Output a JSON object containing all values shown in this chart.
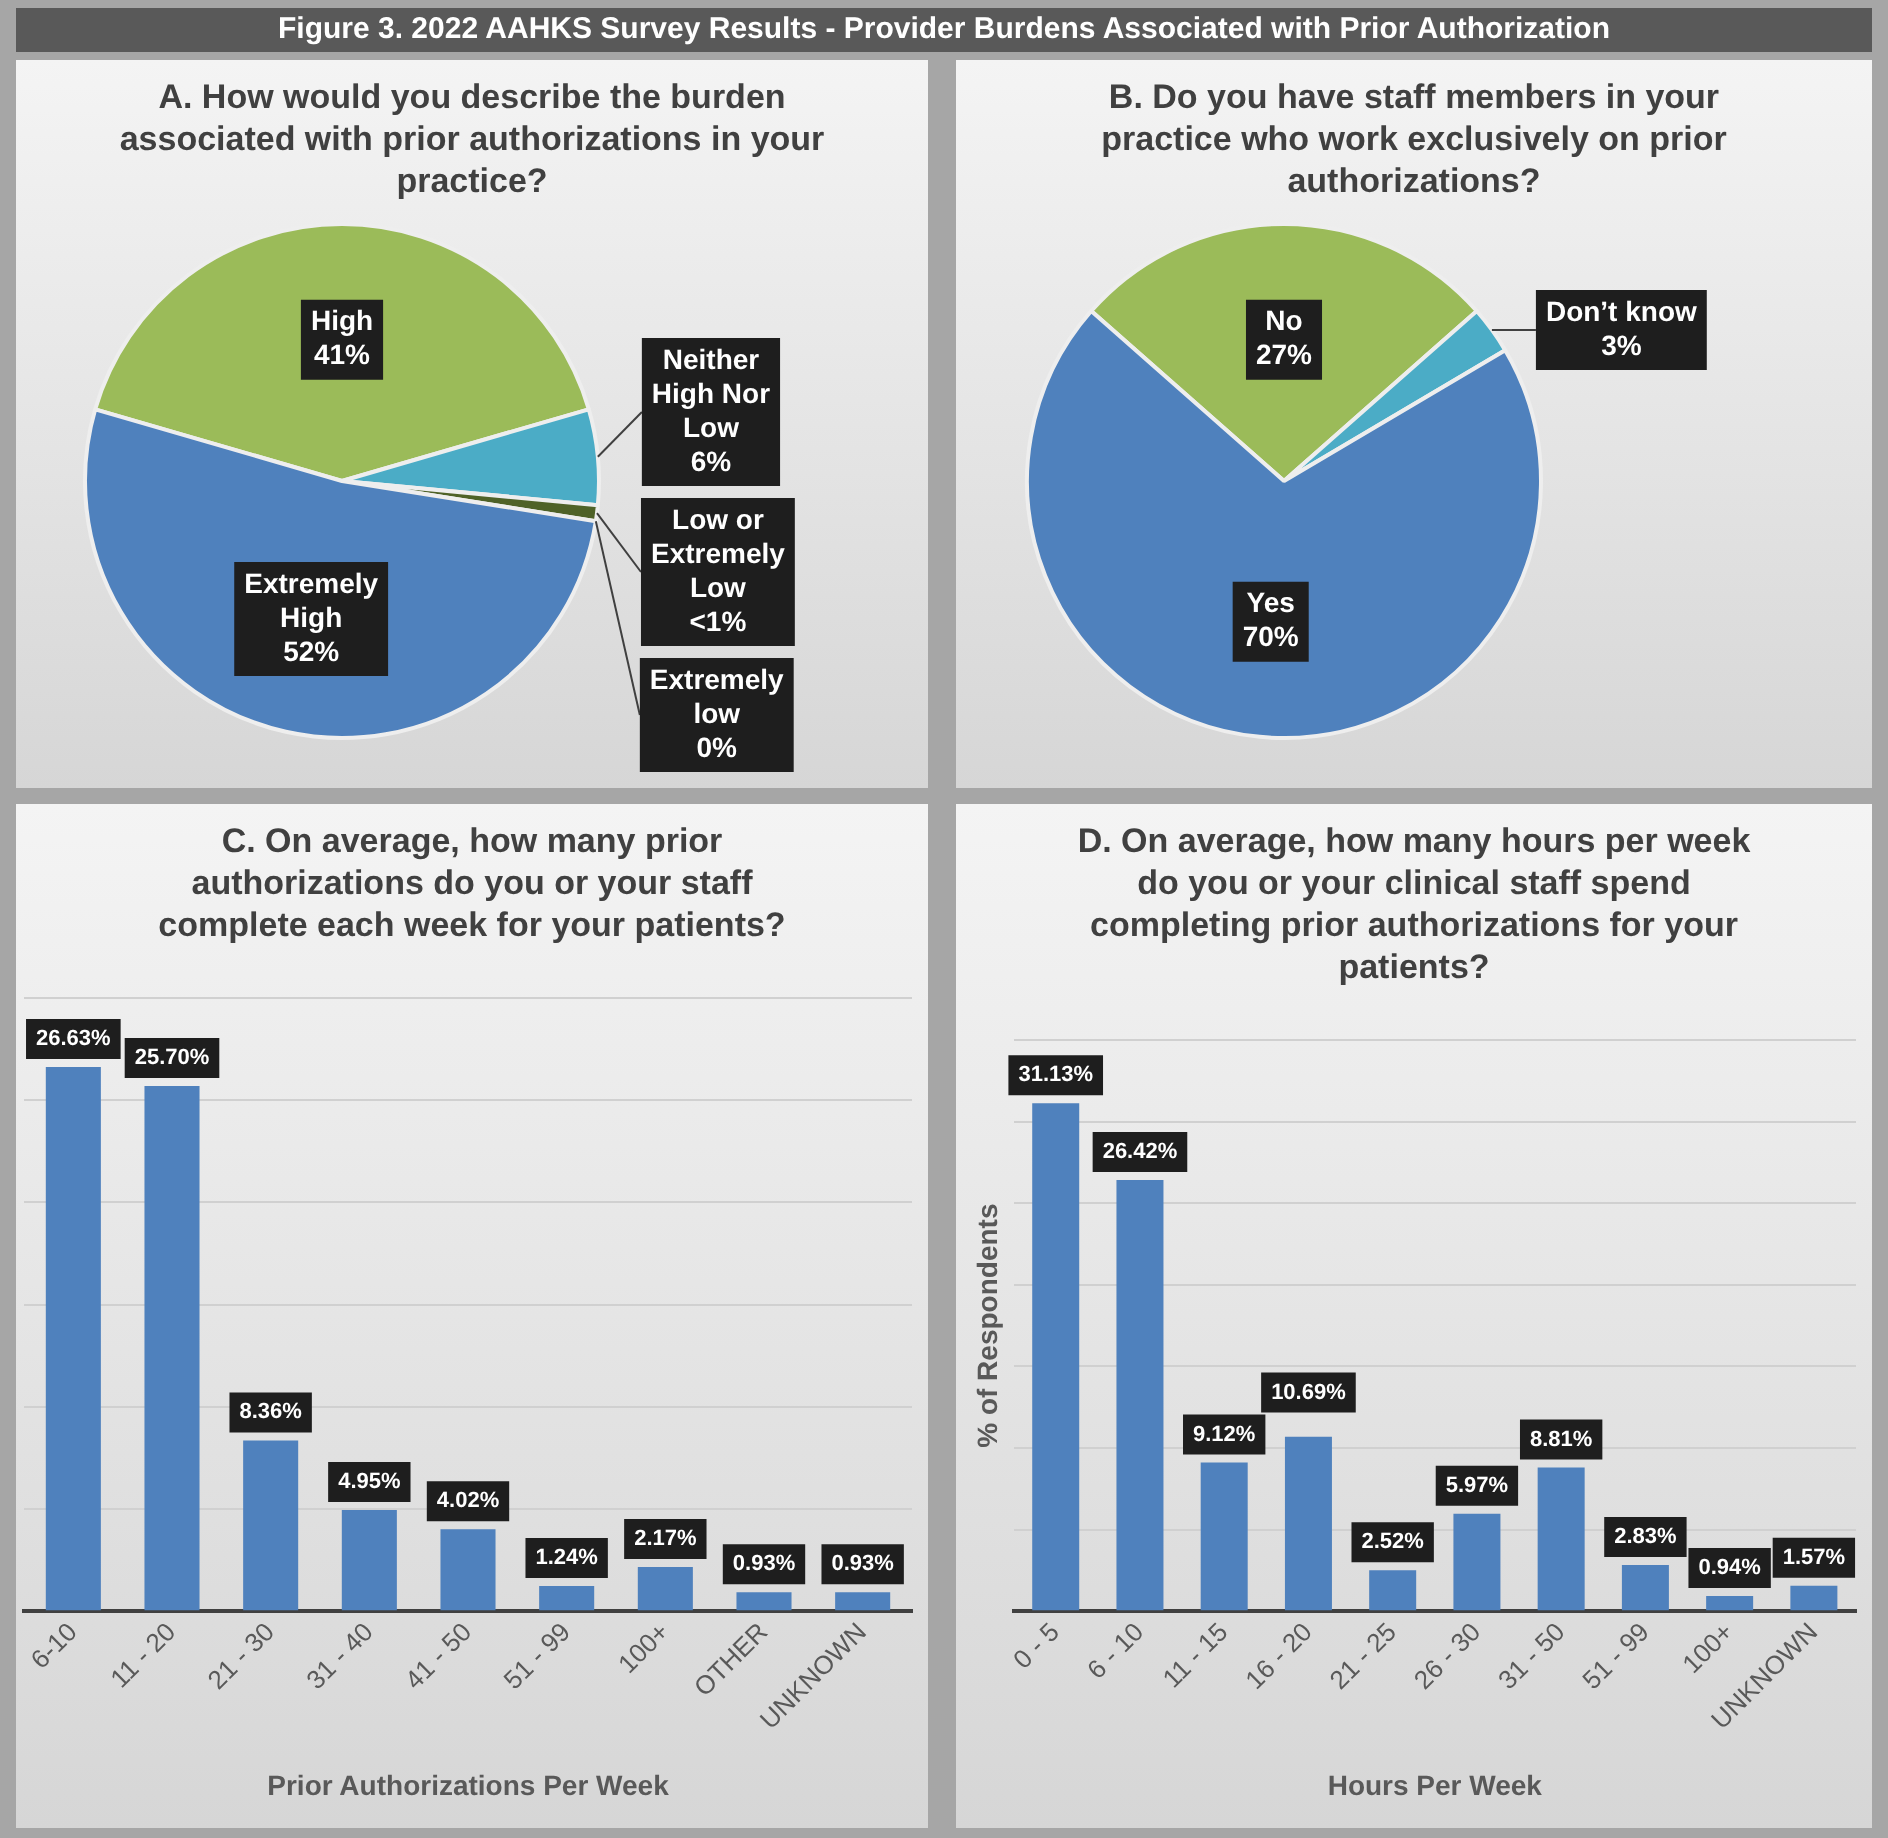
{
  "chart_data": [
    {
      "type": "pie",
      "title": "Figure 3.  2022 AAHKS Survey Results - Provider Burdens Associated with Prior Authorization",
      "subtitle": "A. How would you describe the burden associated with prior authorizations in your practice?",
      "categories": [
        "High",
        "Neither High Nor Low",
        "Low or Extremely Low",
        "Extremely low",
        "Extremely High"
      ],
      "values": [
        41,
        6,
        1,
        0,
        52
      ],
      "colors": [
        "#9bbb59",
        "#4bacc6",
        "#4f6228",
        "#c0504d",
        "#4f81bd"
      ],
      "value_labels": [
        "41%",
        "6%",
        "<1%",
        "0%",
        "52%"
      ]
    },
    {
      "type": "pie",
      "title": "B. Do you have staff members in your practice who work exclusively on prior authorizations?",
      "categories": [
        "No",
        "Don’t know",
        "Yes"
      ],
      "values": [
        27,
        3,
        70
      ],
      "colors": [
        "#9bbb59",
        "#4bacc6",
        "#4f81bd"
      ],
      "value_labels": [
        "27%",
        "3%",
        "70%"
      ]
    },
    {
      "type": "bar",
      "title": "C. On average, how many prior authorizations do you or your staff complete each week for your patients?",
      "xlabel": "Prior Authorizations Per Week",
      "categories": [
        "6-10",
        "11 - 20",
        "21 - 30",
        "31 - 40",
        "41 - 50",
        "51 - 99",
        "100+",
        "OTHER",
        "UNKNOWN"
      ],
      "values": [
        26.63,
        25.7,
        8.36,
        4.95,
        4.02,
        1.24,
        2.17,
        0.93,
        0.93
      ],
      "color": "#4f81bd",
      "value_labels": [
        "26.63%",
        "25.70%",
        "8.36%",
        "4.95%",
        "4.02%",
        "1.24%",
        "2.17%",
        "0.93%",
        "0.93%"
      ],
      "ylim": [
        0,
        30
      ],
      "yticks": [
        {
          "value": 0,
          "label": null
        },
        {
          "value": 5,
          "label": null
        },
        {
          "value": 10,
          "label": null
        },
        {
          "value": 15,
          "label": null
        },
        {
          "value": 20,
          "label": null
        },
        {
          "value": 25,
          "label": null
        },
        {
          "value": 30,
          "label": null
        }
      ],
      "grid": "y",
      "tick_labels": "x"
    },
    {
      "type": "bar",
      "title": "D. On average, how many hours per week do you or your clinical staff spend completing prior authorizations for your patients?",
      "xlabel": "Hours Per Week",
      "ylabel": "% of Respondents",
      "categories": [
        "0 - 5",
        "6 - 10",
        "11 - 15",
        "16 - 20",
        "21 - 25",
        "26 - 30",
        "31 - 50",
        "51 - 99",
        "100+",
        "UNKNOWN"
      ],
      "values": [
        31.13,
        26.42,
        9.12,
        10.69,
        2.52,
        5.97,
        8.81,
        2.83,
        0.94,
        1.57
      ],
      "color": "#4f81bd",
      "value_labels": [
        "31.13%",
        "26.42%",
        "9.12%",
        "10.69%",
        "2.52%",
        "5.97%",
        "8.81%",
        "2.83%",
        "0.94%",
        "1.57%"
      ],
      "ylim": [
        0,
        35
      ],
      "yticks": [
        {
          "value": 0,
          "label": null
        },
        {
          "value": 5,
          "label": null
        },
        {
          "value": 10,
          "label": null
        },
        {
          "value": 15,
          "label": null
        },
        {
          "value": 20,
          "label": null
        },
        {
          "value": 25,
          "label": null
        },
        {
          "value": 30,
          "label": null
        },
        {
          "value": 35,
          "label": null
        }
      ],
      "grid": "y",
      "tick_labels": "x"
    }
  ]
}
